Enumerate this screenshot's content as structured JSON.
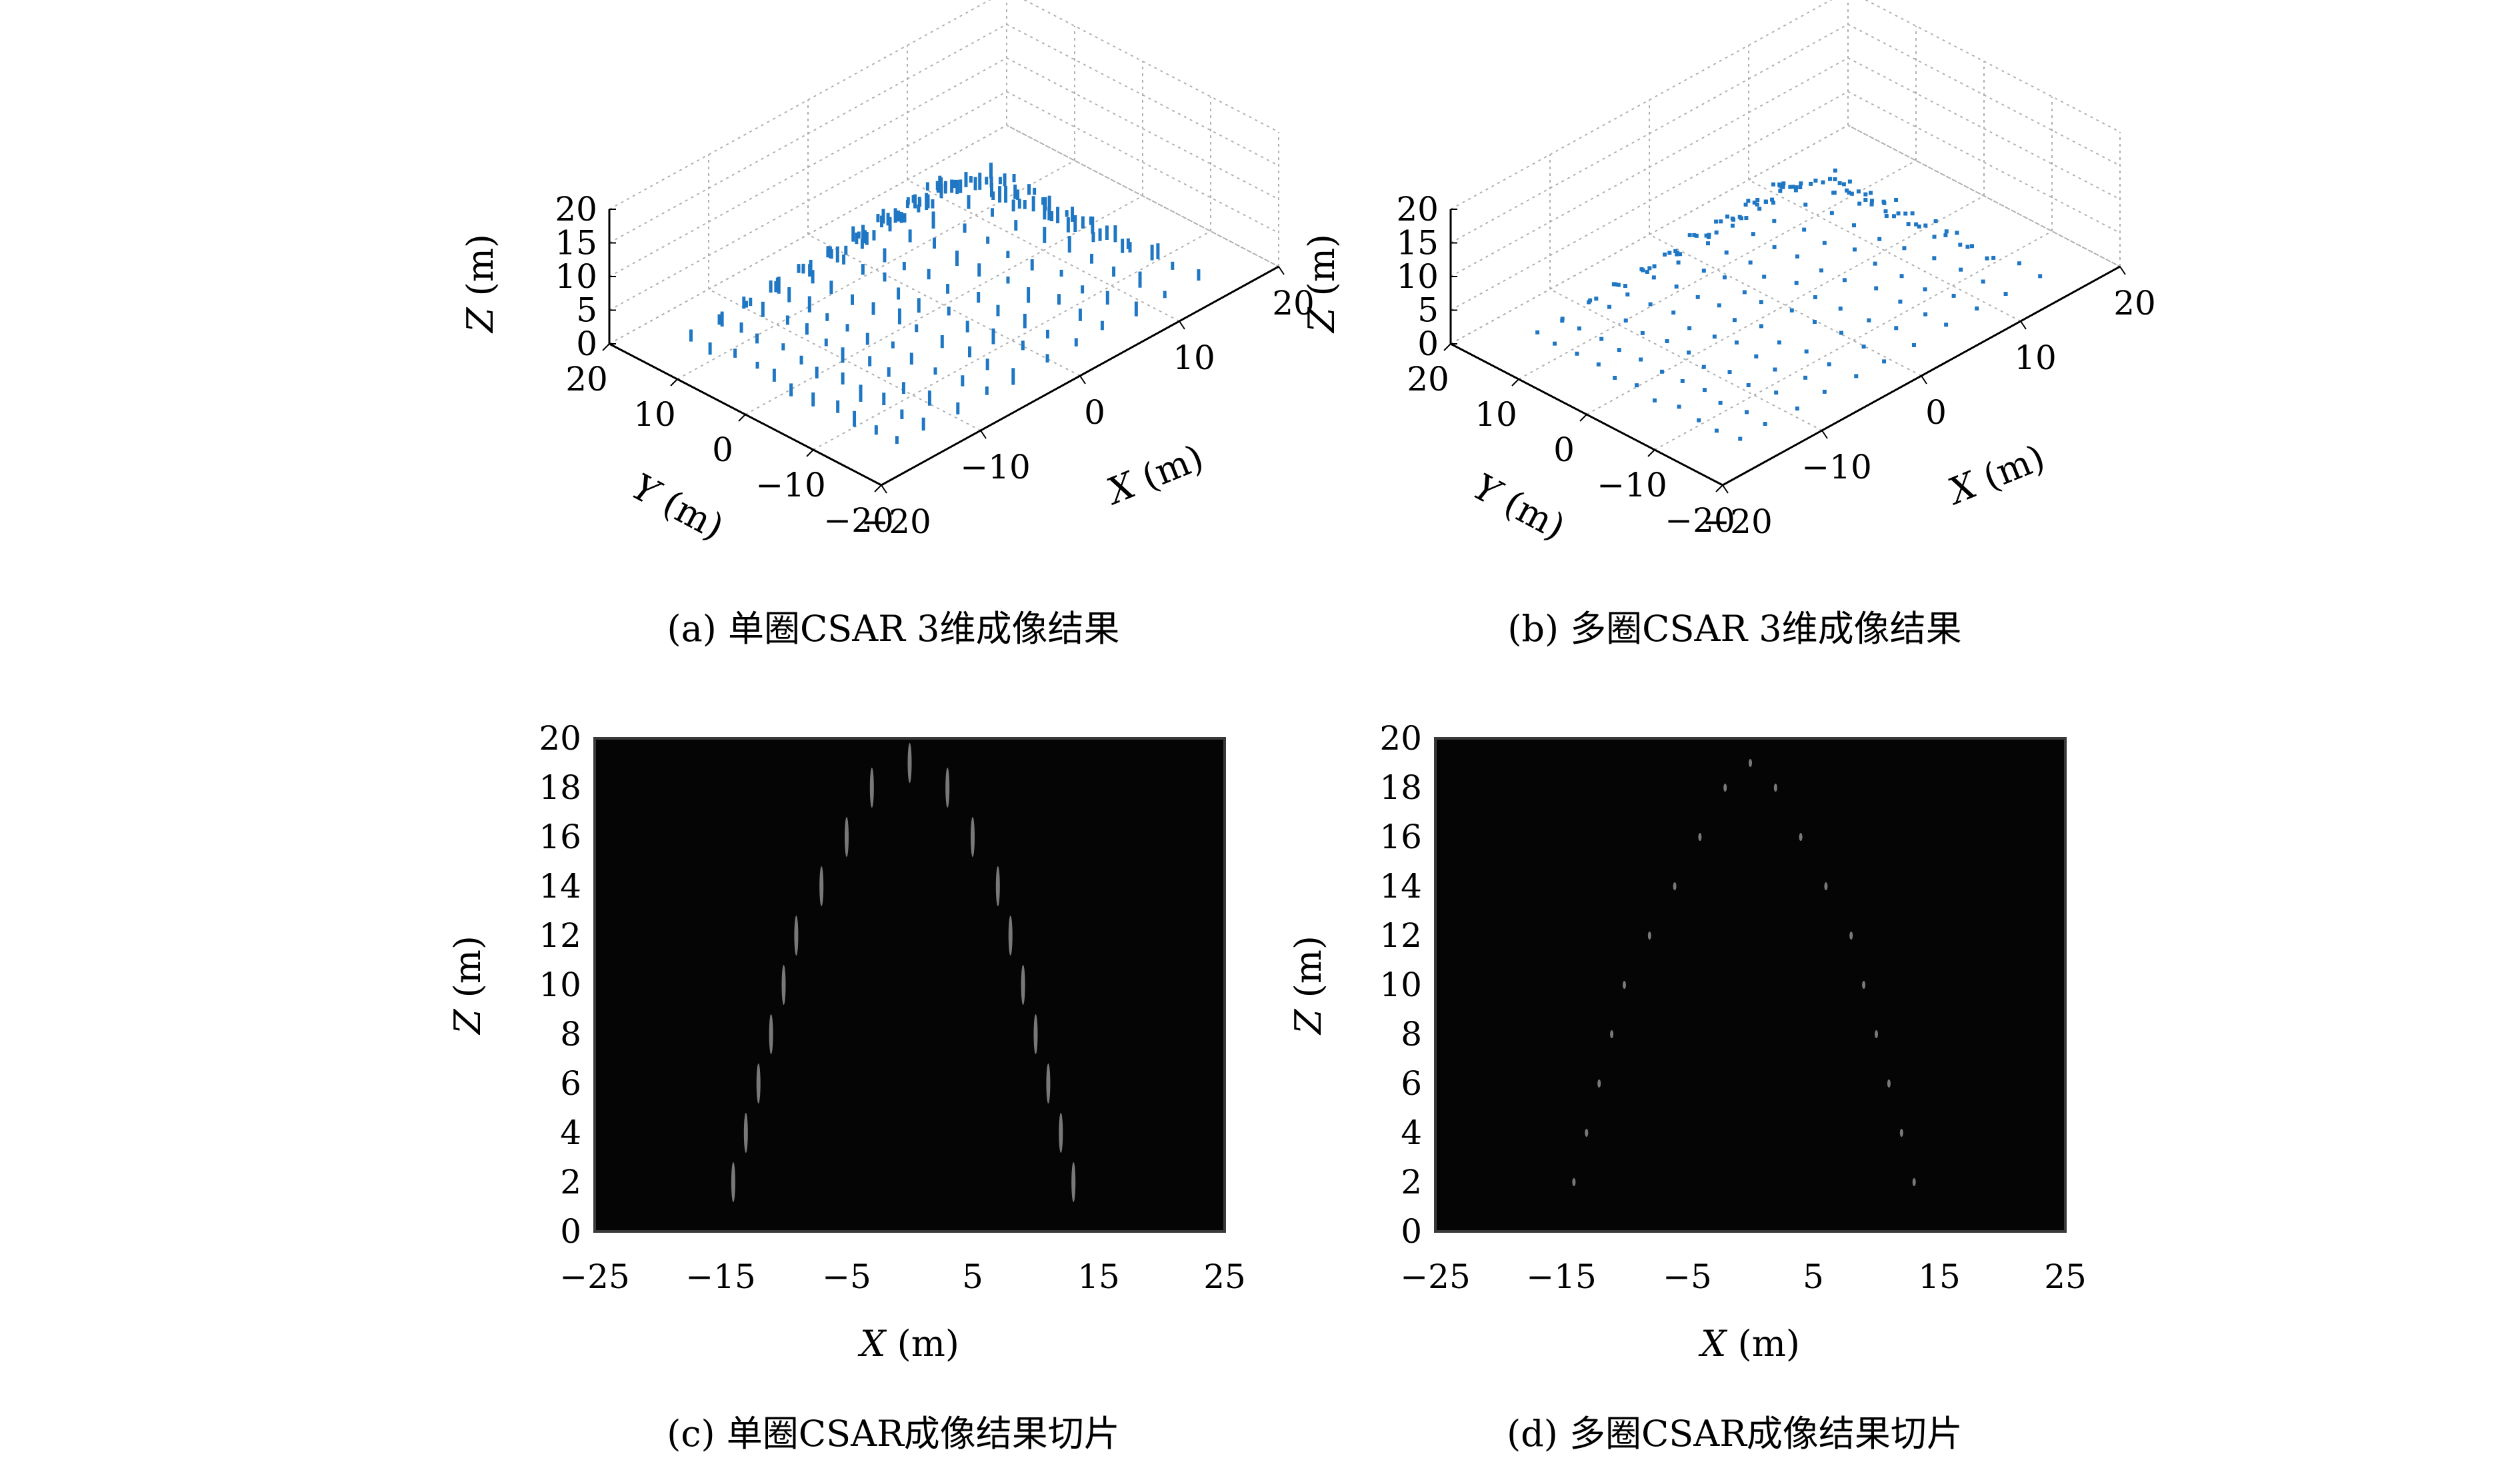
{
  "captions": {
    "a": "(a) 单圈CSAR 3维成像结果",
    "b": "(b) 多圈CSAR 3维成像结果",
    "c": "(c) 单圈CSAR成像结果切片",
    "d": "(d) 多圈CSAR成像结果切片"
  },
  "colors": {
    "points": "#1f77c4",
    "slice_bg": "#050505",
    "slice_highlight": "#d8d8d8",
    "frame": "#3a3a3a"
  },
  "chart_data": [
    {
      "id": "a",
      "type": "scatter",
      "title": "",
      "xlabel": "X (m)",
      "ylabel": "Y (m)",
      "zlabel": "Z (m)",
      "xlim": [
        -20,
        20
      ],
      "ylim": [
        -20,
        20
      ],
      "zlim": [
        0,
        20
      ],
      "x_ticks": [
        "−20",
        "−10",
        "0",
        "10",
        "20"
      ],
      "y_ticks": [
        "20",
        "10",
        "0",
        "−10",
        "−20"
      ],
      "z_ticks": [
        "0",
        "5",
        "10",
        "15",
        "20"
      ],
      "grid": true,
      "description_shape": "pyramid",
      "pyramid": {
        "half_width_base": 15,
        "apex_z": 18,
        "layer_dz": 2,
        "grid_step": 3
      },
      "points_style": "vertical-streaks"
    },
    {
      "id": "b",
      "type": "scatter",
      "title": "",
      "xlabel": "X (m)",
      "ylabel": "Y (m)",
      "zlabel": "Z (m)",
      "xlim": [
        -20,
        20
      ],
      "ylim": [
        -20,
        20
      ],
      "zlim": [
        0,
        20
      ],
      "x_ticks": [
        "−20",
        "−10",
        "0",
        "10",
        "20"
      ],
      "y_ticks": [
        "20",
        "10",
        "0",
        "−10",
        "−20"
      ],
      "z_ticks": [
        "0",
        "5",
        "10",
        "15",
        "20"
      ],
      "grid": true,
      "description_shape": "pyramid",
      "pyramid": {
        "half_width_base": 15,
        "apex_z": 18,
        "layer_dz": 2,
        "grid_step": 3
      },
      "points_style": "dots"
    },
    {
      "id": "c",
      "type": "heatmap",
      "title": "",
      "xlabel": "X (m)",
      "ylabel": "Z (m)",
      "xlim": [
        -25,
        25
      ],
      "ylim": [
        0,
        20
      ],
      "x_ticks": [
        "−25",
        "−15",
        "−5",
        "5",
        "15",
        "25"
      ],
      "y_ticks": [
        "0",
        "2",
        "4",
        "6",
        "8",
        "10",
        "12",
        "14",
        "16",
        "18",
        "20"
      ],
      "highlights": [
        {
          "x": -14,
          "z": 2
        },
        {
          "x": -13,
          "z": 4
        },
        {
          "x": -12,
          "z": 6
        },
        {
          "x": -11,
          "z": 8
        },
        {
          "x": -10,
          "z": 10
        },
        {
          "x": -9,
          "z": 12
        },
        {
          "x": -7,
          "z": 14
        },
        {
          "x": -5,
          "z": 16
        },
        {
          "x": -3,
          "z": 18
        },
        {
          "x": 0,
          "z": 19
        },
        {
          "x": 3,
          "z": 18
        },
        {
          "x": 5,
          "z": 16
        },
        {
          "x": 7,
          "z": 14
        },
        {
          "x": 8,
          "z": 12
        },
        {
          "x": 9,
          "z": 10
        },
        {
          "x": 10,
          "z": 8
        },
        {
          "x": 11,
          "z": 6
        },
        {
          "x": 12,
          "z": 4
        },
        {
          "x": 13,
          "z": 2
        }
      ]
    },
    {
      "id": "d",
      "type": "heatmap",
      "title": "",
      "xlabel": "X (m)",
      "ylabel": "Z (m)",
      "xlim": [
        -25,
        25
      ],
      "ylim": [
        0,
        20
      ],
      "x_ticks": [
        "−25",
        "−15",
        "−5",
        "5",
        "15",
        "25"
      ],
      "y_ticks": [
        "0",
        "2",
        "4",
        "6",
        "8",
        "10",
        "12",
        "14",
        "16",
        "18",
        "20"
      ],
      "highlights": [
        {
          "x": -14,
          "z": 2
        },
        {
          "x": -13,
          "z": 4
        },
        {
          "x": -12,
          "z": 6
        },
        {
          "x": -11,
          "z": 8
        },
        {
          "x": -10,
          "z": 10
        },
        {
          "x": -8,
          "z": 12
        },
        {
          "x": -6,
          "z": 14
        },
        {
          "x": -4,
          "z": 16
        },
        {
          "x": -2,
          "z": 18
        },
        {
          "x": 0,
          "z": 19
        },
        {
          "x": 2,
          "z": 18
        },
        {
          "x": 4,
          "z": 16
        },
        {
          "x": 6,
          "z": 14
        },
        {
          "x": 8,
          "z": 12
        },
        {
          "x": 9,
          "z": 10
        },
        {
          "x": 10,
          "z": 8
        },
        {
          "x": 11,
          "z": 6
        },
        {
          "x": 12,
          "z": 4
        },
        {
          "x": 13,
          "z": 2
        }
      ]
    }
  ]
}
